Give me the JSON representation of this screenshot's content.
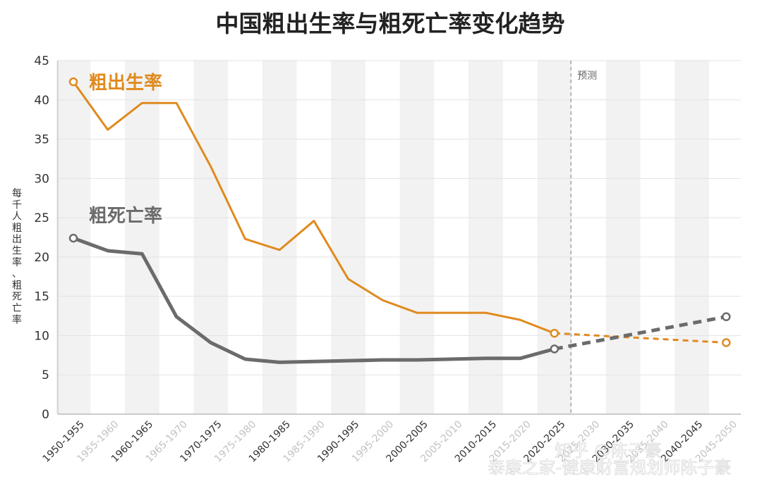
{
  "chart_data": {
    "type": "line",
    "title": "中国粗出生率与粗死亡率变化趋势",
    "ylabel": "每千人粗出生率、粗死亡率",
    "ylim": [
      0,
      45
    ],
    "yticks": [
      "0",
      "5",
      "10",
      "15",
      "20",
      "25",
      "30",
      "35",
      "40",
      "45"
    ],
    "categories": [
      "1950-1955",
      "1955-1960",
      "1960-1965",
      "1965-1970",
      "1970-1975",
      "1975-1980",
      "1980-1985",
      "1985-1990",
      "1990-1995",
      "1995-2000",
      "2000-2005",
      "2005-2010",
      "2010-2015",
      "2015-2020",
      "2020-2025",
      "2025-2030",
      "2030-2035",
      "2035-2040",
      "2040-2045",
      "2045-2050"
    ],
    "highlighted_categories": [
      "1950-1955",
      "1960-1965",
      "1970-1975",
      "1980-1985",
      "1990-1995",
      "2000-2005",
      "2010-2015",
      "2020-2025",
      "2030-2035",
      "2040-2045"
    ],
    "forecast_label": "预测",
    "forecast_start": "2025-2030",
    "series": [
      {
        "name": "粗出生率",
        "color": "#e08a1e",
        "x": [
          "1950-1955",
          "1955-1960",
          "1960-1965",
          "1965-1970",
          "1970-1975",
          "1975-1980",
          "1980-1985",
          "1985-1990",
          "1990-1995",
          "1995-2000",
          "2000-2005",
          "2005-2010",
          "2010-2015",
          "2015-2020",
          "2020-2025",
          "2045-2050"
        ],
        "values": [
          42.3,
          36.2,
          39.6,
          39.6,
          31.5,
          22.3,
          20.9,
          24.6,
          17.2,
          14.5,
          12.9,
          12.9,
          12.9,
          12.0,
          10.3,
          9.1
        ]
      },
      {
        "name": "粗死亡率",
        "color": "#6b6b6b",
        "x": [
          "1950-1955",
          "1955-1960",
          "1960-1965",
          "1965-1970",
          "1970-1975",
          "1975-1980",
          "1980-1985",
          "1985-1990",
          "1990-1995",
          "1995-2000",
          "2000-2005",
          "2005-2010",
          "2010-2015",
          "2015-2020",
          "2020-2025",
          "2045-2050"
        ],
        "values": [
          22.4,
          20.8,
          20.4,
          12.4,
          9.1,
          7.0,
          6.6,
          6.7,
          6.8,
          6.9,
          6.9,
          7.0,
          7.1,
          7.1,
          8.3,
          12.4
        ]
      }
    ],
    "grid": true,
    "legend": "inline labels"
  },
  "watermark": {
    "line1": "知乎 @陈子豪",
    "line2": "泰康之家-健康财富规划师陈子豪"
  }
}
